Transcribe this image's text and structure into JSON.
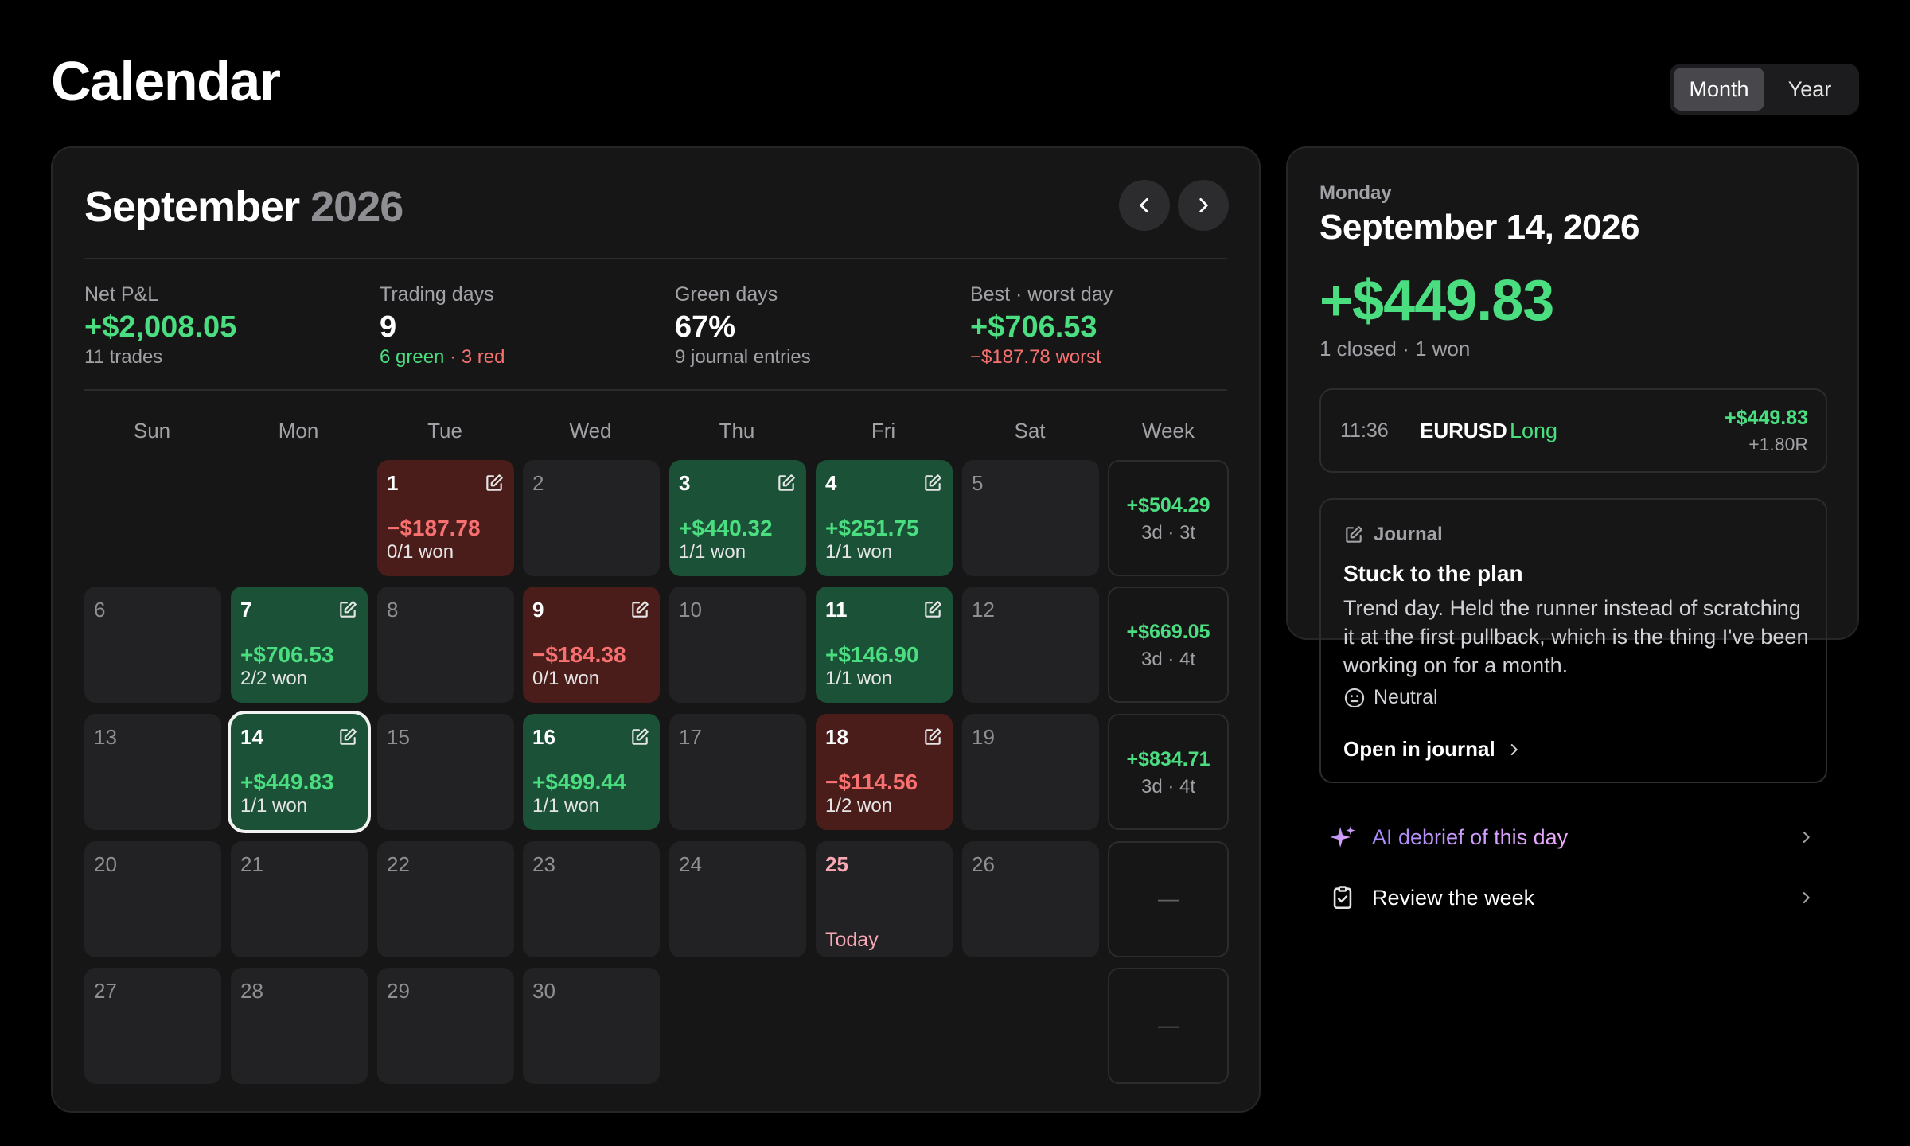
{
  "page": {
    "title": "Calendar"
  },
  "view_toggle": {
    "month_label": "Month",
    "year_label": "Year",
    "selected": "Month"
  },
  "calendar": {
    "month_name": "September",
    "year": "2026",
    "stats": {
      "net_pnl": {
        "label": "Net P&L",
        "value": "+$2,008.05",
        "sub": "11 trades"
      },
      "trading_days": {
        "label": "Trading days",
        "value": "9",
        "sub_green": "6 green",
        "sub_sep": " · ",
        "sub_red": "3 red"
      },
      "green_days": {
        "label": "Green days",
        "value": "67%",
        "sub": "9 journal entries"
      },
      "best_worst": {
        "label": "Best · worst day",
        "value": "+$706.53",
        "sub": "−$187.78 worst"
      }
    },
    "weekday_headers": [
      "Sun",
      "Mon",
      "Tue",
      "Wed",
      "Thu",
      "Fri",
      "Sat",
      "Week"
    ],
    "days": [
      {
        "day": "1",
        "status": "loss",
        "pnl": "−$187.78",
        "won": "0/1 won",
        "journal": true
      },
      {
        "day": "2"
      },
      {
        "day": "3",
        "status": "win",
        "pnl": "+$440.32",
        "won": "1/1 won",
        "journal": true
      },
      {
        "day": "4",
        "status": "win",
        "pnl": "+$251.75",
        "won": "1/1 won",
        "journal": true
      },
      {
        "day": "5"
      },
      {
        "day": "6"
      },
      {
        "day": "7",
        "status": "win",
        "pnl": "+$706.53",
        "won": "2/2 won",
        "journal": true
      },
      {
        "day": "8"
      },
      {
        "day": "9",
        "status": "loss",
        "pnl": "−$184.38",
        "won": "0/1 won",
        "journal": true
      },
      {
        "day": "10"
      },
      {
        "day": "11",
        "status": "win",
        "pnl": "+$146.90",
        "won": "1/1 won",
        "journal": true
      },
      {
        "day": "12"
      },
      {
        "day": "13"
      },
      {
        "day": "14",
        "status": "win",
        "pnl": "+$449.83",
        "won": "1/1 won",
        "journal": true,
        "selected": true
      },
      {
        "day": "15"
      },
      {
        "day": "16",
        "status": "win",
        "pnl": "+$499.44",
        "won": "1/1 won",
        "journal": true
      },
      {
        "day": "17"
      },
      {
        "day": "18",
        "status": "loss",
        "pnl": "−$114.56",
        "won": "1/2 won",
        "journal": true
      },
      {
        "day": "19"
      },
      {
        "day": "20"
      },
      {
        "day": "21"
      },
      {
        "day": "22"
      },
      {
        "day": "23"
      },
      {
        "day": "24"
      },
      {
        "day": "25",
        "today": true,
        "today_label": "Today"
      },
      {
        "day": "26"
      },
      {
        "day": "27"
      },
      {
        "day": "28"
      },
      {
        "day": "29"
      },
      {
        "day": "30"
      }
    ],
    "weeks": [
      {
        "pnl": "+$504.29",
        "sub": "3d · 3t"
      },
      {
        "pnl": "+$669.05",
        "sub": "3d · 4t"
      },
      {
        "pnl": "+$834.71",
        "sub": "3d · 4t"
      },
      {
        "empty": "—"
      },
      {
        "empty": "—"
      }
    ]
  },
  "detail": {
    "weekday": "Monday",
    "date": "September 14, 2026",
    "pnl": "+$449.83",
    "summary": "1 closed · 1 won",
    "trade": {
      "time": "11:36",
      "symbol": "EURUSD",
      "side": "Long",
      "pnl": "+$449.83",
      "r": "+1.80R"
    },
    "journal": {
      "header": "Journal",
      "title": "Stuck to the plan",
      "body": "Trend day. Held the runner instead of scratching it at the first pullback, which is the thing I've been working on for a month.",
      "mood": "Neutral",
      "open_label": "Open in journal"
    },
    "actions": {
      "ai_debrief": "AI debrief of this day",
      "review_week": "Review the week"
    }
  },
  "colors": {
    "green": "#4ade80",
    "red": "#f87171",
    "win_bg": "#1b5137",
    "loss_bg": "#4a1c1a",
    "today": "#f9a8b4",
    "panel": "#161617"
  }
}
